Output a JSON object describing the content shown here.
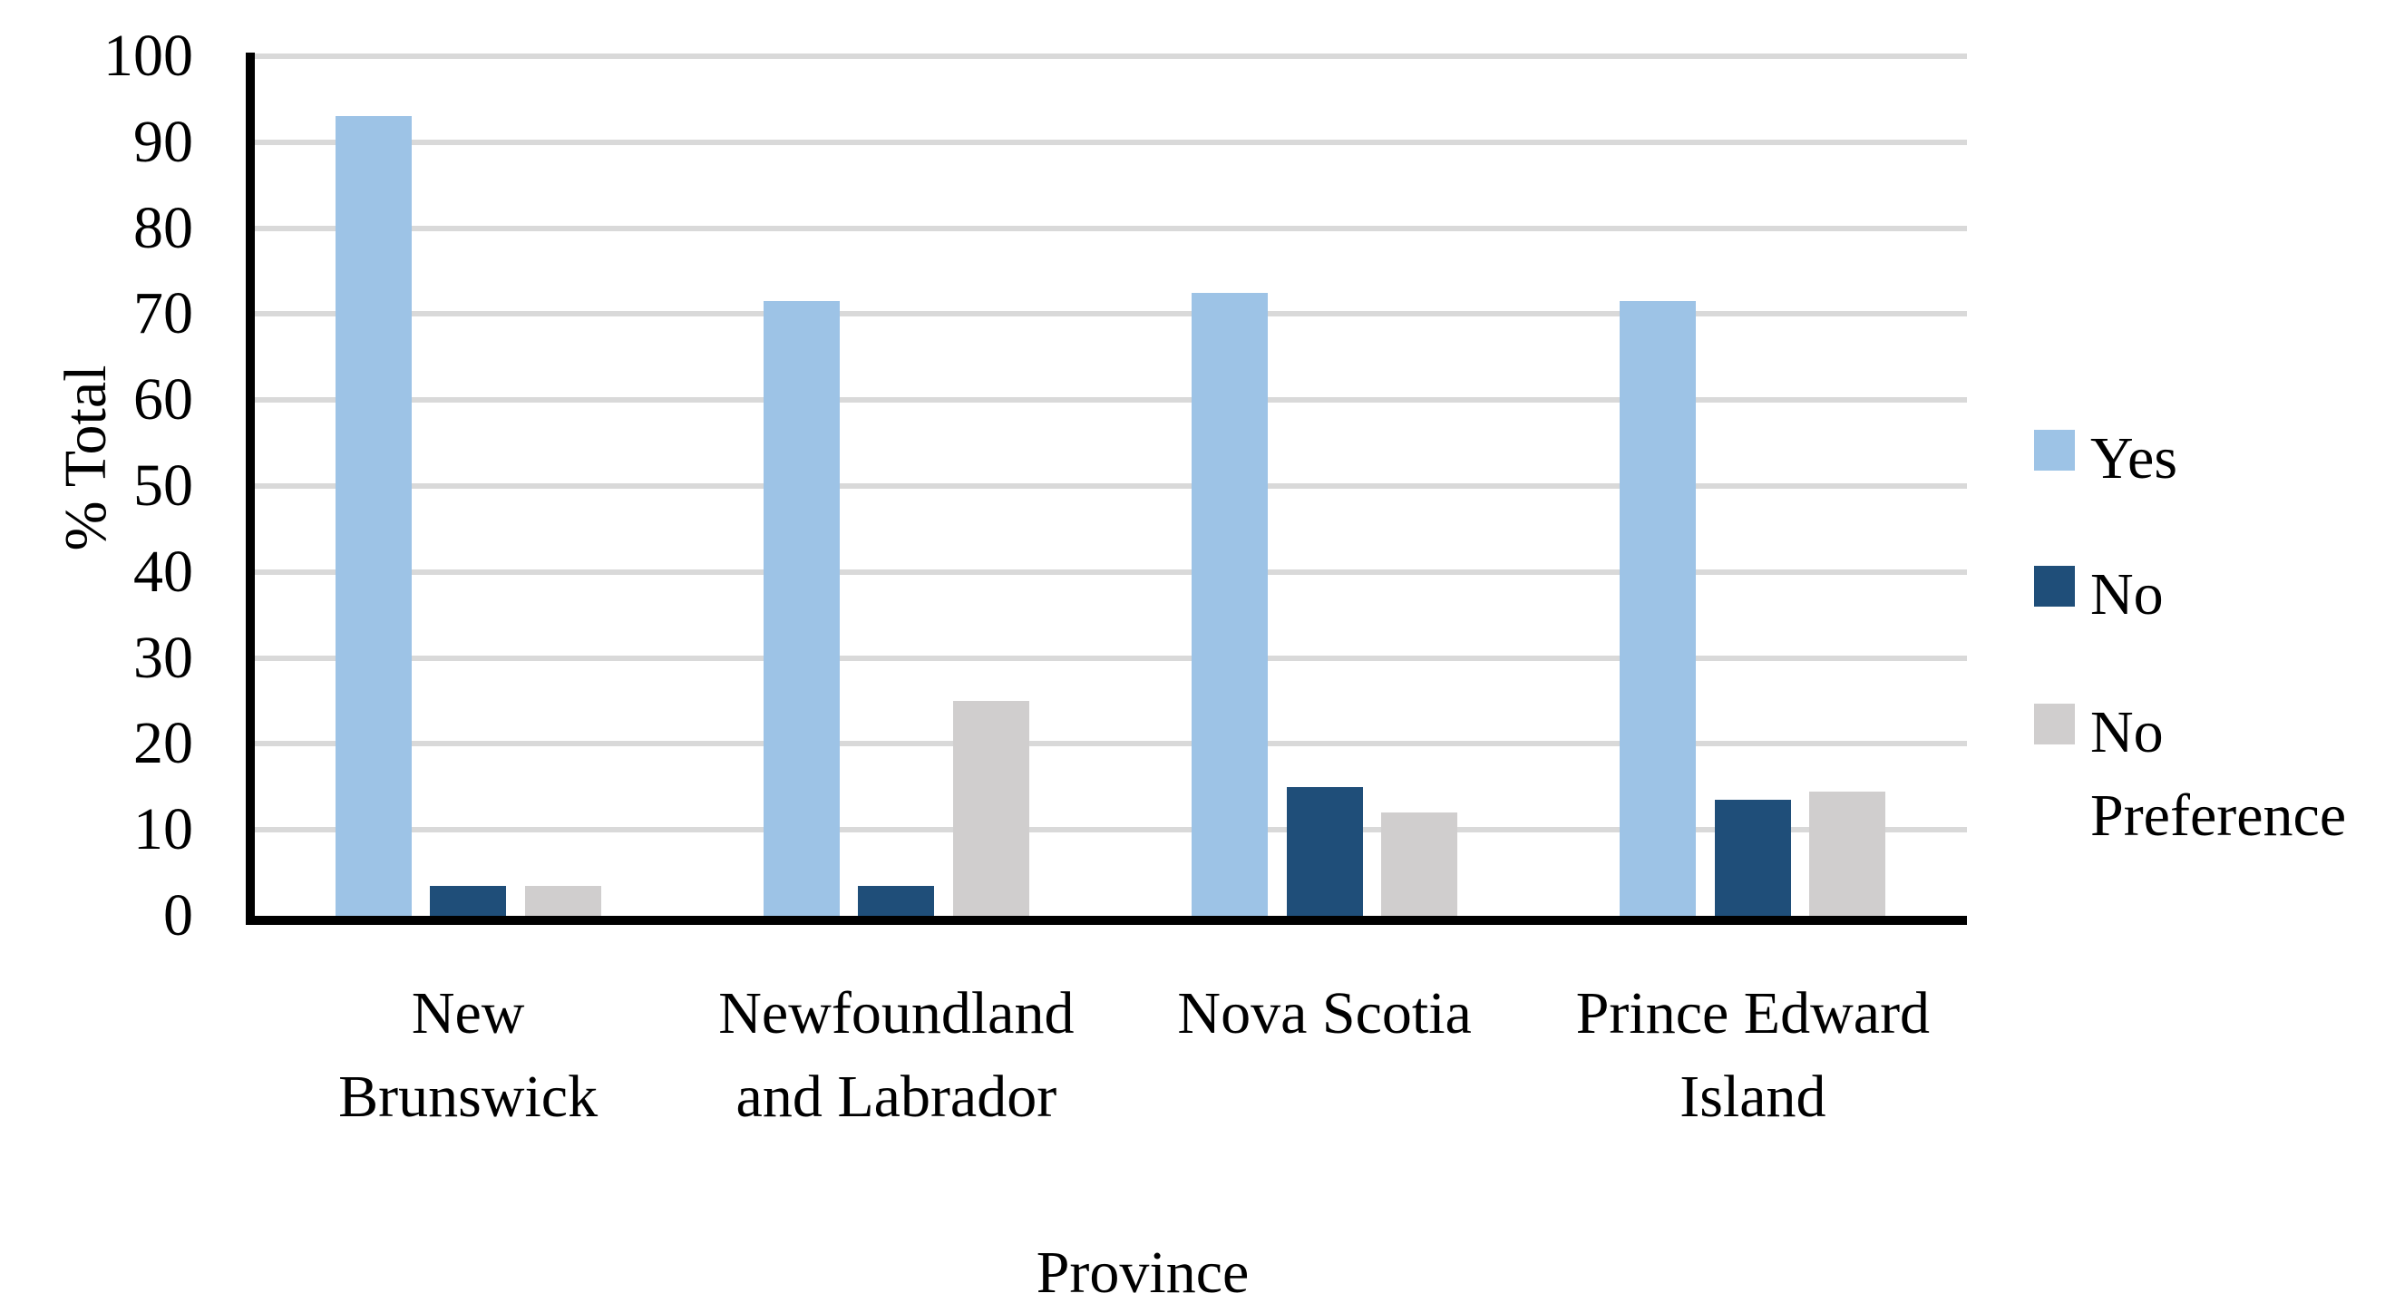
{
  "figure": {
    "background_color": "#FFFFFF",
    "gridline_color": "#D9D9D9",
    "axis_color": "#000000",
    "y_axis_title": "% Total",
    "x_axis_title": "Province",
    "y_tick_labels": [
      "0",
      "10",
      "20",
      "30",
      "40",
      "50",
      "60",
      "70",
      "80",
      "90",
      "100"
    ],
    "legend": {
      "position": "right",
      "items": [
        {
          "label": "Yes",
          "color": "#9DC3E6"
        },
        {
          "label": "No",
          "color": "#1F4E79"
        },
        {
          "label": "No Preference",
          "color": "#D0CECE"
        }
      ]
    }
  },
  "chart_data": {
    "type": "bar",
    "title": "",
    "categories": [
      "New Brunswick",
      "Newfoundland and Labrador",
      "Nova Scotia",
      "Prince Edward Island"
    ],
    "category_label_lines": [
      [
        "New",
        "Brunswick"
      ],
      [
        "Newfoundland",
        "and Labrador"
      ],
      [
        "Nova Scotia"
      ],
      [
        "Prince Edward",
        "Island"
      ]
    ],
    "series": [
      {
        "name": "Yes",
        "color": "#9DC3E6",
        "values": [
          93,
          71.5,
          72.5,
          71.5
        ]
      },
      {
        "name": "No",
        "color": "#1F4E79",
        "values": [
          3.5,
          3.5,
          15,
          13.5
        ]
      },
      {
        "name": "No Preference",
        "color": "#D0CECE",
        "values": [
          3.5,
          25,
          12,
          14.5
        ]
      }
    ],
    "xlabel": "Province",
    "ylabel": "% Total",
    "ylim": [
      0,
      100
    ],
    "y_tick_step": 10,
    "gridlines": true,
    "legend_position": "right"
  }
}
